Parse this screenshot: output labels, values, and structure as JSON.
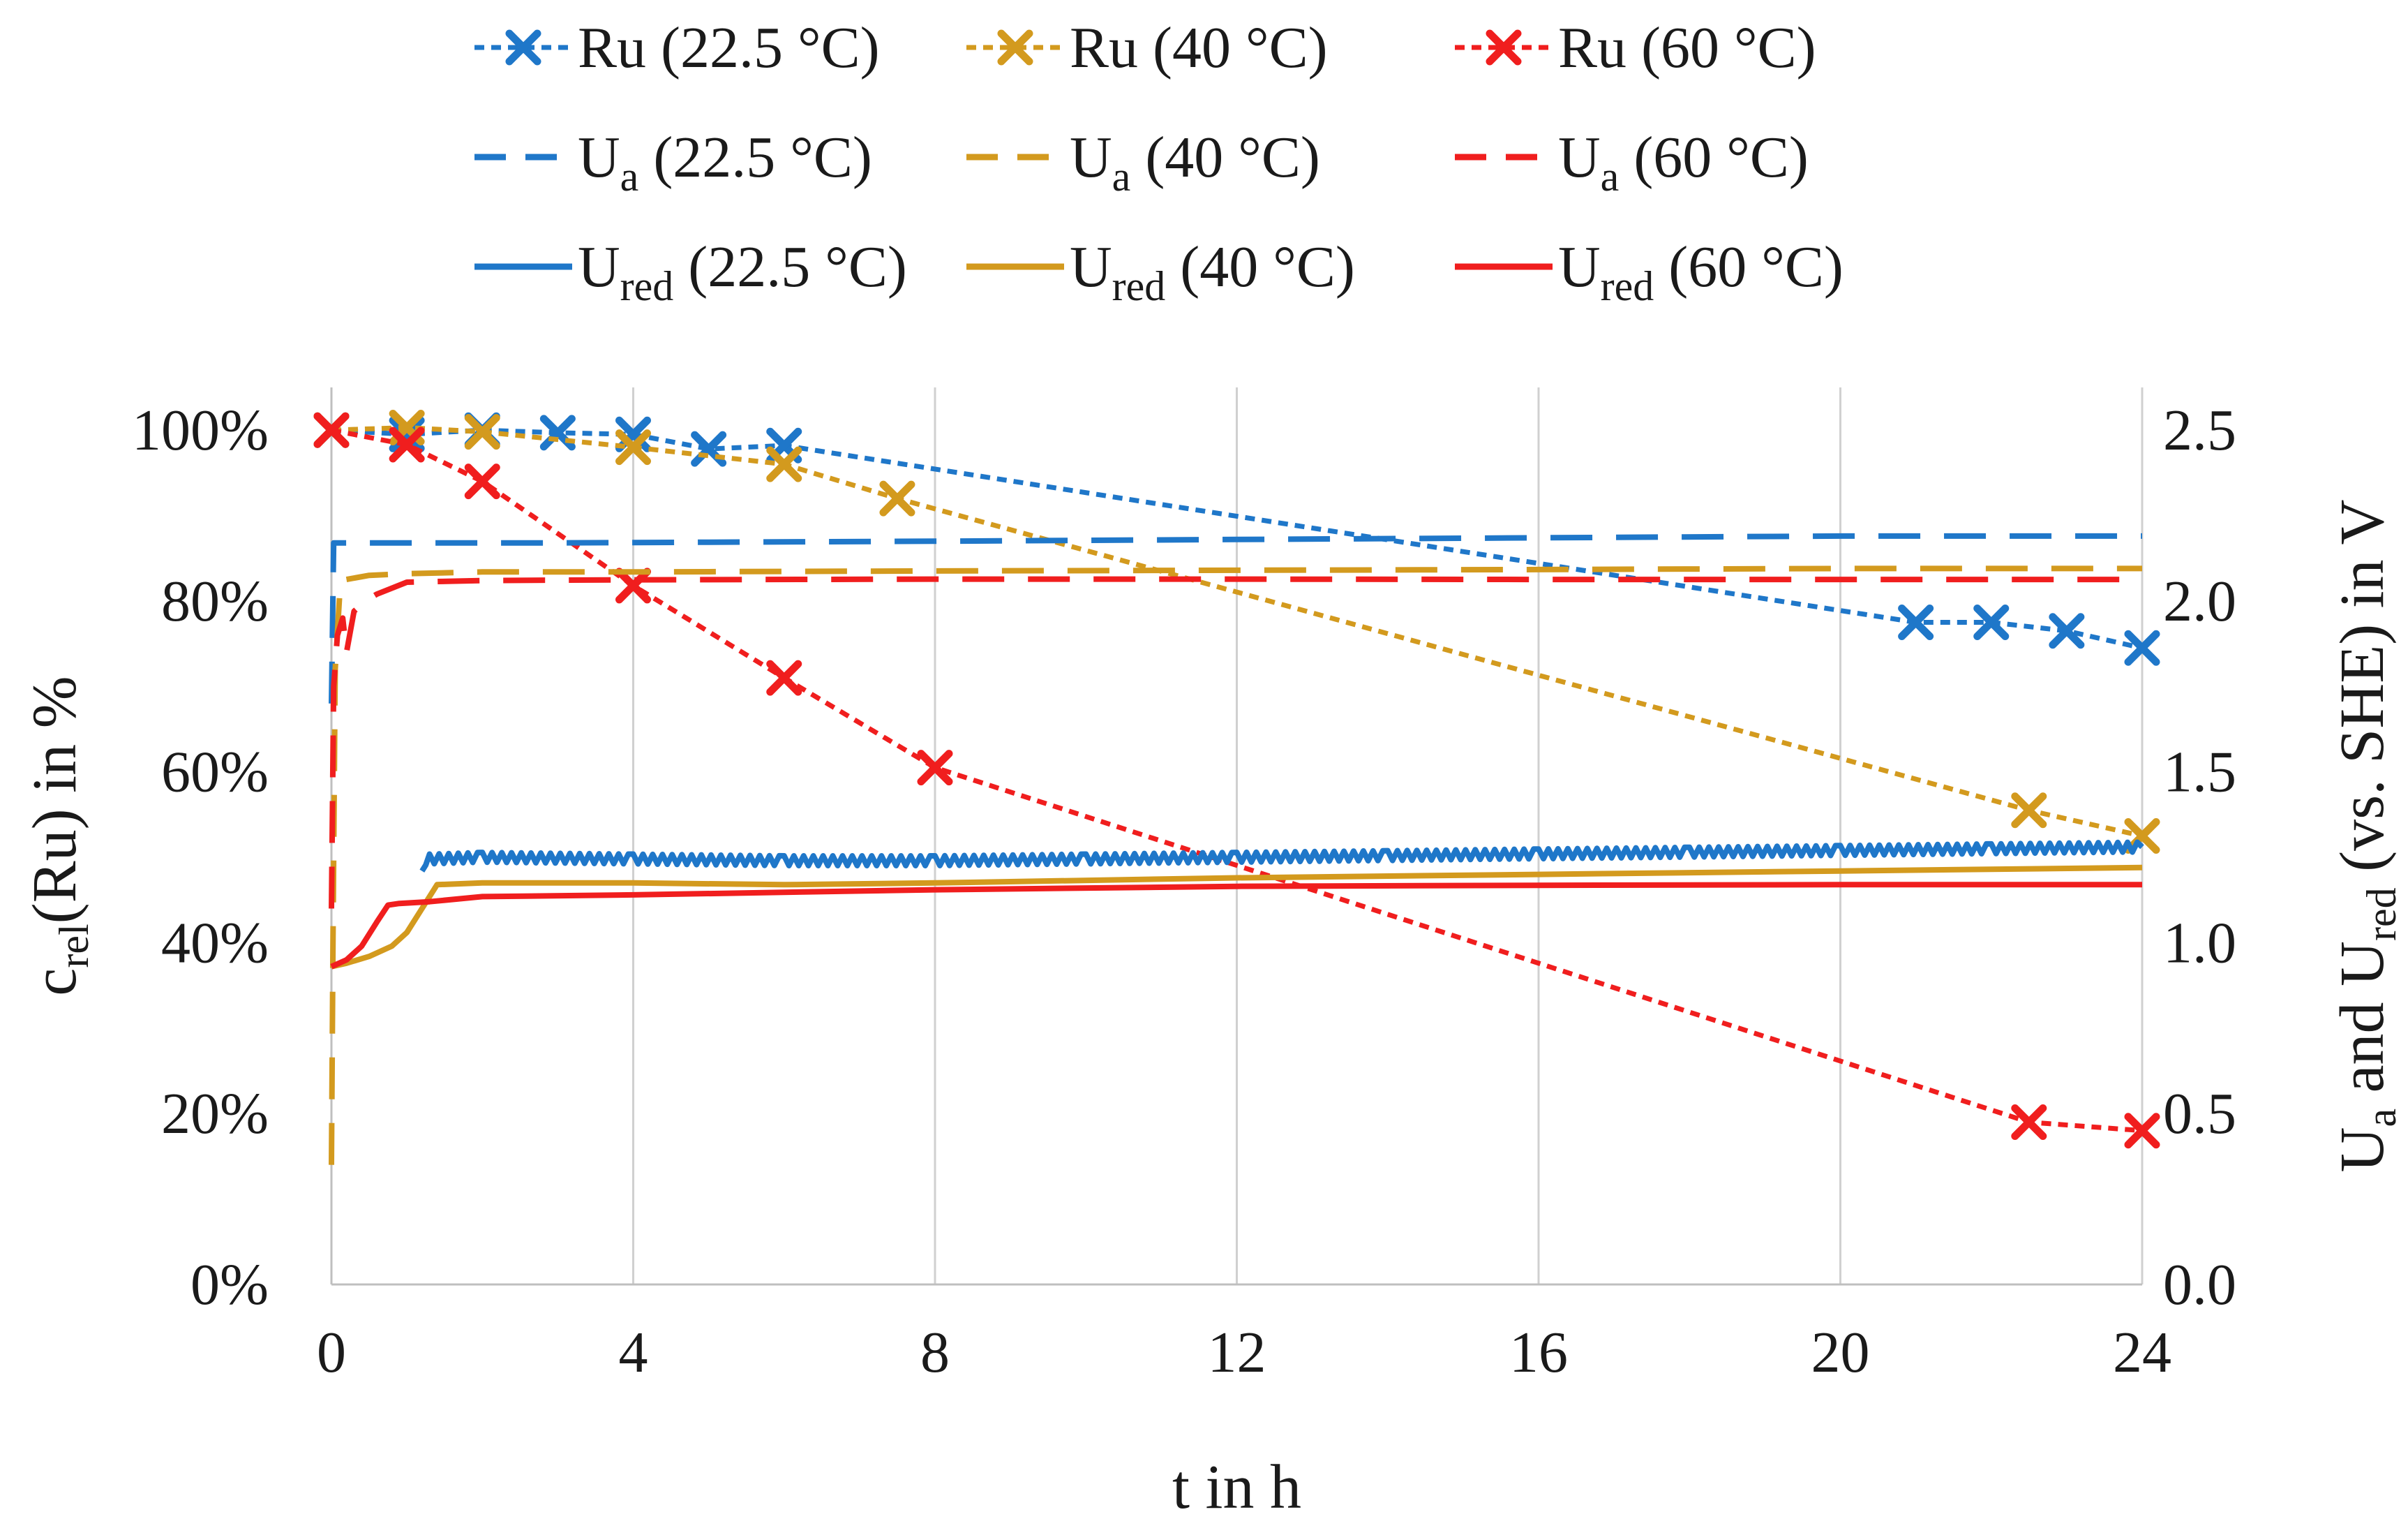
{
  "chart_data": {
    "type": "line",
    "title": "",
    "xlabel": "t in h",
    "ylabel_left": {
      "main": "c",
      "sub": "rel",
      "rest": "(Ru) in %"
    },
    "ylabel_right": {
      "p1": "U",
      "s1": "a",
      "p2": " and U",
      "s2": "red",
      "p3": " (vs. SHE) in V"
    },
    "xlim": [
      0,
      24
    ],
    "ylim_left": [
      0,
      105
    ],
    "ylim_right": [
      0,
      2.625
    ],
    "x_ticks": [
      0,
      4,
      8,
      12,
      16,
      20,
      24
    ],
    "x_tick_labels": [
      "0",
      "4",
      "8",
      "12",
      "16",
      "20",
      "24"
    ],
    "y_left_ticks": [
      0,
      20,
      40,
      60,
      80,
      100
    ],
    "y_left_tick_labels": [
      "0%",
      "20%",
      "40%",
      "60%",
      "80%",
      "100%"
    ],
    "y_right_ticks": [
      0,
      0.5,
      1.0,
      1.5,
      2.0,
      2.5
    ],
    "y_right_tick_labels": [
      "0.0",
      "0.5",
      "1.0",
      "1.5",
      "2.0",
      "2.5"
    ],
    "grid": "vertical",
    "legend_position": "top",
    "colors": {
      "t22": "#1f77c9",
      "t40": "#d39a1e",
      "t60": "#f01e1e"
    },
    "series": [
      {
        "key": "ru22",
        "name": "Ru (22.5 °C)",
        "legend": {
          "main": "Ru",
          "sub": "",
          "rest": " (22.5 °C)"
        },
        "axis": "left",
        "style": "dotted-marker",
        "color": "#1f77c9",
        "x": [
          0,
          1,
          2,
          3,
          4,
          5,
          6,
          21,
          22,
          23,
          24
        ],
        "y": [
          100,
          99.5,
          100,
          99.7,
          99.5,
          97.8,
          98.2,
          77.5,
          77.5,
          76.5,
          74.5
        ]
      },
      {
        "key": "ru40",
        "name": "Ru (40 °C)",
        "legend": {
          "main": "Ru",
          "sub": "",
          "rest": " (40 °C)"
        },
        "axis": "left",
        "style": "dotted-marker",
        "color": "#d39a1e",
        "x": [
          0,
          1,
          2,
          4,
          6,
          7.5,
          22.5,
          24
        ],
        "y": [
          100,
          100.3,
          99.8,
          98,
          96,
          92,
          55.5,
          52.5
        ]
      },
      {
        "key": "ru60",
        "name": "Ru (60 °C)",
        "legend": {
          "main": "Ru",
          "sub": "",
          "rest": " (60 °C)"
        },
        "axis": "left",
        "style": "dotted-marker",
        "color": "#f01e1e",
        "x": [
          0,
          1,
          2,
          4,
          6,
          8,
          22.5,
          24
        ],
        "y": [
          100,
          98.3,
          94,
          81.8,
          71,
          60.5,
          19,
          18
        ]
      },
      {
        "key": "ua22",
        "name": "Ua (22.5 °C)",
        "legend": {
          "main": "U",
          "sub": "a",
          "rest": "  (22.5 °C)"
        },
        "axis": "right",
        "style": "dashed",
        "color": "#1f77c9",
        "x": [
          0,
          0.03,
          0.1,
          3,
          8,
          12,
          16,
          20,
          24
        ],
        "y": [
          1.7,
          2.17,
          2.17,
          2.17,
          2.175,
          2.18,
          2.185,
          2.19,
          2.19
        ]
      },
      {
        "key": "ua40",
        "name": "Ua (40 °C)",
        "legend": {
          "main": "U",
          "sub": "a",
          "rest": "  (40 °C)"
        },
        "axis": "right",
        "style": "dashed",
        "color": "#d39a1e",
        "x": [
          0,
          0.02,
          0.05,
          0.12,
          0.5,
          1,
          2,
          4,
          8,
          12,
          16,
          20,
          24
        ],
        "y": [
          0.35,
          1.0,
          1.8,
          2.06,
          2.075,
          2.08,
          2.085,
          2.085,
          2.088,
          2.09,
          2.092,
          2.095,
          2.095
        ]
      },
      {
        "key": "ua60",
        "name": "Ua (60 °C)",
        "legend": {
          "main": "U",
          "sub": "a",
          "rest": "  (60 °C)"
        },
        "axis": "right",
        "style": "dashed",
        "color": "#f01e1e",
        "x": [
          0,
          0.03,
          0.08,
          0.15,
          0.2,
          0.3,
          0.45,
          0.6,
          1,
          2,
          4,
          8,
          12,
          16,
          20,
          24
        ],
        "y": [
          1.1,
          1.75,
          1.9,
          1.95,
          1.85,
          1.97,
          2.0,
          2.02,
          2.055,
          2.06,
          2.062,
          2.064,
          2.064,
          2.063,
          2.063,
          2.063
        ]
      },
      {
        "key": "ured22",
        "name": "Ured (22.5 °C)",
        "legend": {
          "main": "U",
          "sub": "red",
          "rest": " (22.5 °C)"
        },
        "axis": "right",
        "style": "solid-noisy",
        "color": "#1f77c9",
        "x": [
          1.2,
          1.3,
          2,
          4,
          6,
          8,
          10,
          12,
          14,
          16,
          18,
          20,
          22,
          24
        ],
        "y": [
          1.21,
          1.245,
          1.25,
          1.245,
          1.24,
          1.24,
          1.245,
          1.25,
          1.255,
          1.26,
          1.265,
          1.27,
          1.275,
          1.28
        ]
      },
      {
        "key": "ured40",
        "name": "Ured (40 °C)",
        "legend": {
          "main": "U",
          "sub": "red",
          "rest": " (40 °C)"
        },
        "axis": "right",
        "style": "solid",
        "color": "#d39a1e",
        "x": [
          0,
          0.2,
          0.5,
          0.8,
          1.0,
          1.2,
          1.4,
          2,
          4,
          6,
          8,
          12,
          16,
          20,
          24
        ],
        "y": [
          0.93,
          0.94,
          0.96,
          0.99,
          1.03,
          1.1,
          1.17,
          1.175,
          1.175,
          1.17,
          1.175,
          1.19,
          1.2,
          1.21,
          1.22
        ]
      },
      {
        "key": "ured60",
        "name": "Ured (60 °C)",
        "legend": {
          "main": "U",
          "sub": "red",
          "rest": " (60 °C)"
        },
        "axis": "right",
        "style": "solid",
        "color": "#f01e1e",
        "x": [
          0,
          0.2,
          0.4,
          0.6,
          0.75,
          0.9,
          1.3,
          2,
          4,
          8,
          12,
          16,
          20,
          24
        ],
        "y": [
          0.93,
          0.95,
          0.99,
          1.06,
          1.11,
          1.115,
          1.12,
          1.135,
          1.14,
          1.155,
          1.165,
          1.168,
          1.17,
          1.17
        ]
      }
    ]
  }
}
